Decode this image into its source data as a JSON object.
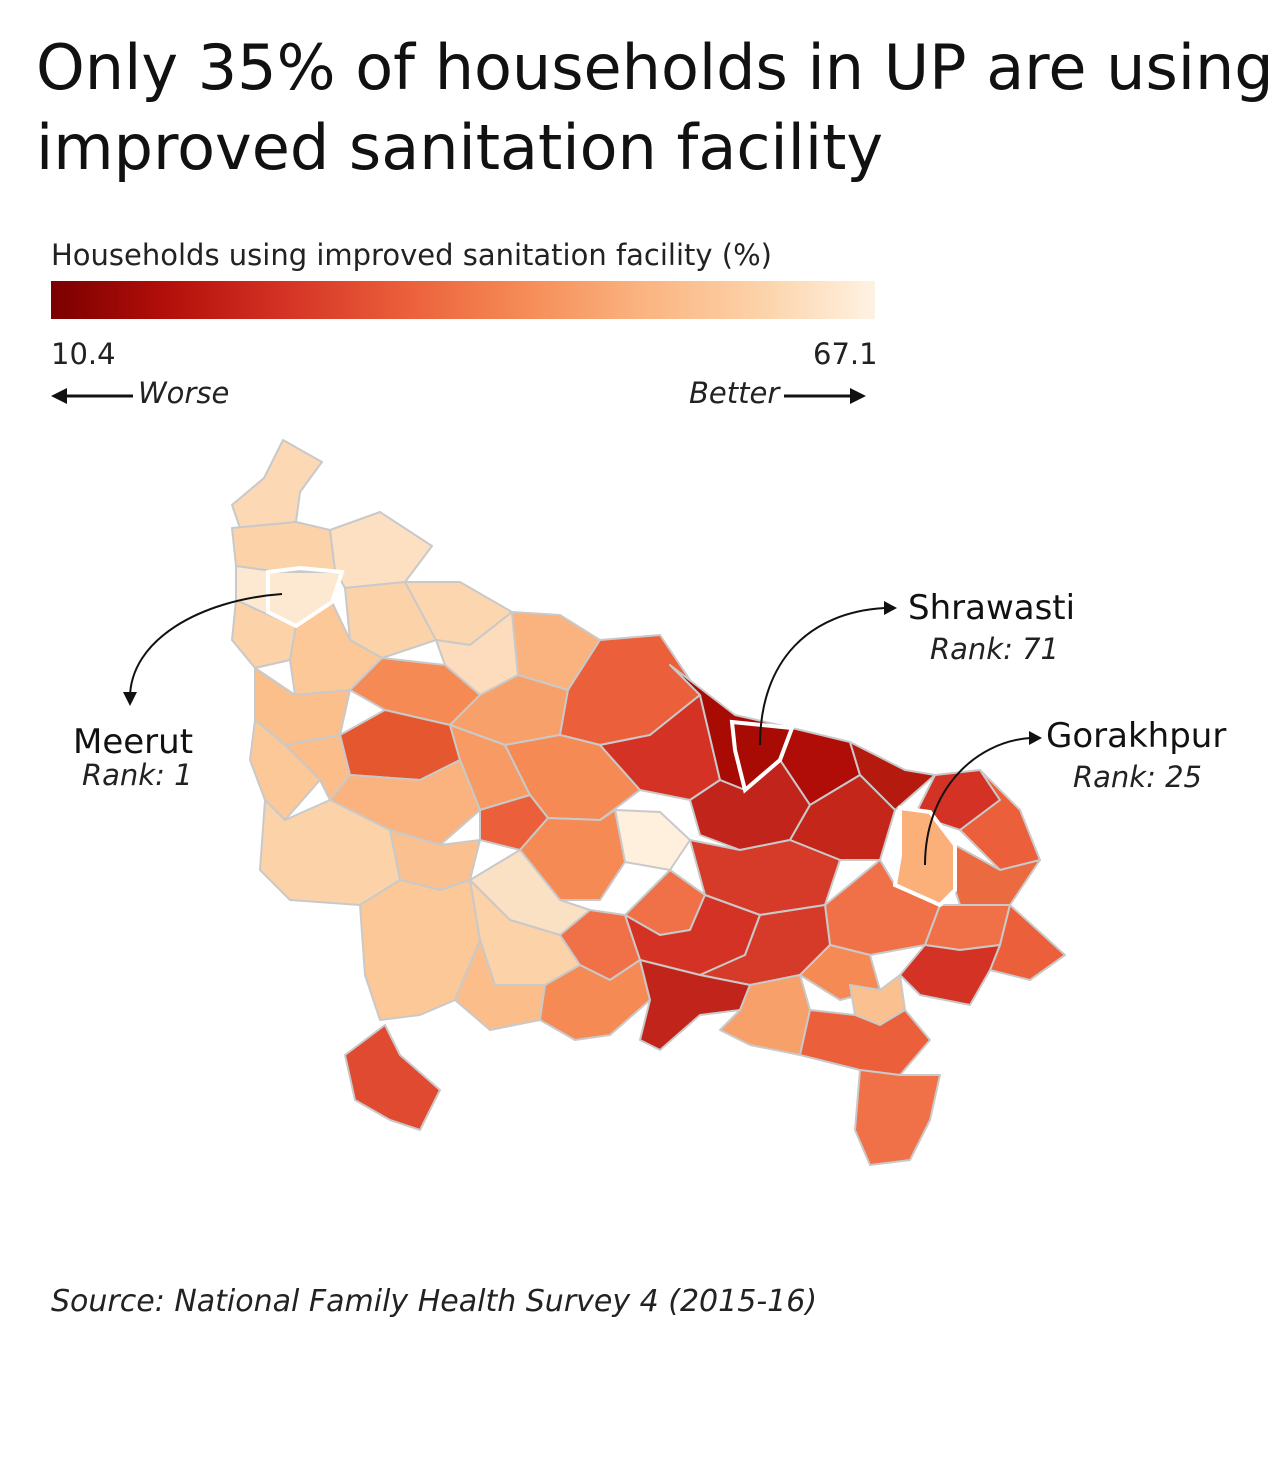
{
  "title": "Only 35% of households in UP are using improved sanitation facility",
  "legend": {
    "label": "Households using improved sanitation facility (%)",
    "min": "10.4",
    "max": "67.1",
    "worse_label": "Worse",
    "better_label": "Better",
    "colors": [
      "#7a0000",
      "#b30f0a",
      "#d33224",
      "#eb5f3a",
      "#f58a55",
      "#fab27e",
      "#fcd2a8",
      "#fff2e3"
    ]
  },
  "callouts": {
    "meerut": {
      "name": "Meerut",
      "rank": "Rank: 1"
    },
    "shrawasti": {
      "name": "Shrawasti",
      "rank": "Rank: 71"
    },
    "gorakhpur": {
      "name": "Gorakhpur",
      "rank": "Rank: 25"
    }
  },
  "source": "Source: National Family Health Survey 4 (2015-16)"
}
